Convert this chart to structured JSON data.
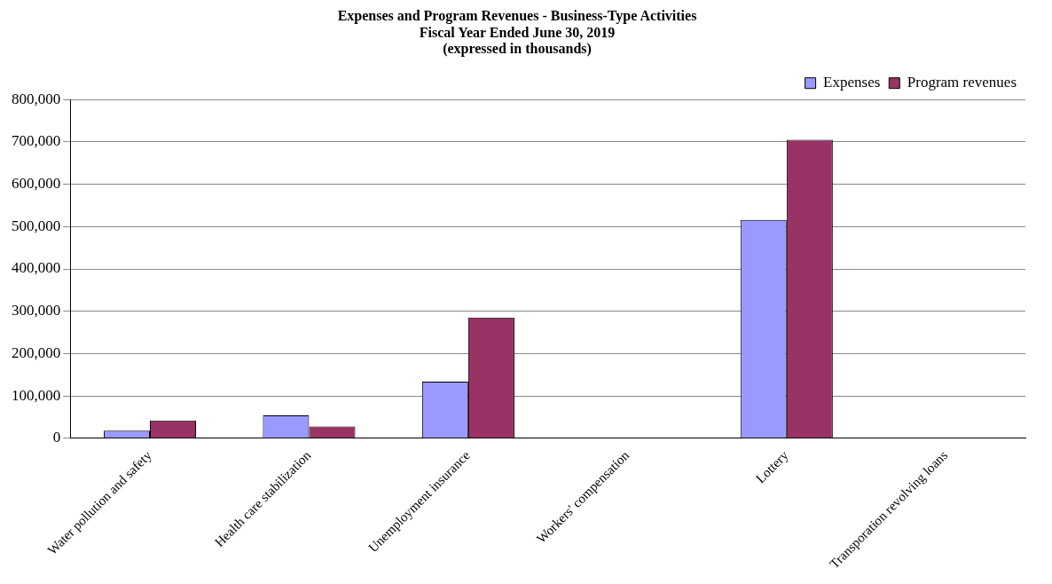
{
  "chart_data": {
    "type": "bar",
    "title": [
      "Expenses and Program Revenues - Business-Type Activities",
      "Fiscal Year Ended June 30, 2019",
      "(expressed in thousands)"
    ],
    "categories": [
      "Water pollution and safety",
      "Health care stabilization",
      "Unemployment insurance",
      "Workers' compensation",
      "Lottery",
      "Transporation revolving loans"
    ],
    "series": [
      {
        "name": "Expenses",
        "color": "#9999ff",
        "values": [
          18000,
          54000,
          134000,
          null,
          516000,
          null
        ]
      },
      {
        "name": "Program revenues",
        "color": "#993366",
        "values": [
          42000,
          28000,
          285000,
          null,
          705000,
          null
        ]
      }
    ],
    "ylim": [
      0,
      800000
    ],
    "yticks": [
      0,
      {
        "value": 100000,
        "label": "100,000"
      },
      {
        "value": 200000,
        "label": "200,000"
      },
      {
        "value": 300000,
        "label": "300,000"
      },
      {
        "value": 400000,
        "label": "400,000"
      },
      {
        "value": 500000,
        "label": "500,000"
      },
      {
        "value": 600000,
        "label": "600,000"
      },
      {
        "value": 700000,
        "label": "700,000"
      },
      {
        "value": 800000,
        "label": "800,000"
      }
    ],
    "grid": "y",
    "legend": "top right"
  }
}
